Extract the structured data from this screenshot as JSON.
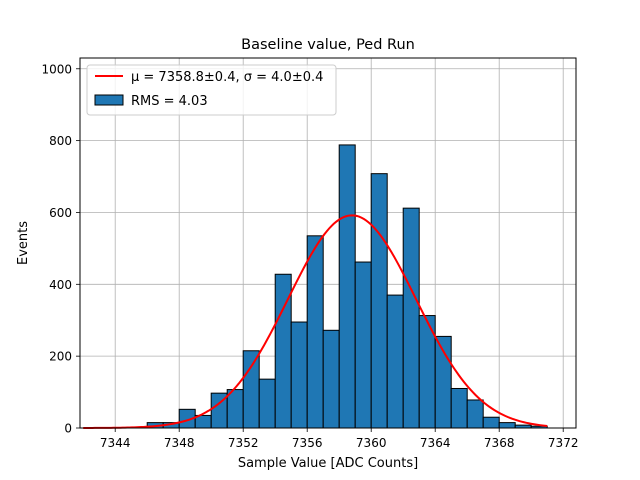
{
  "chart_data": {
    "type": "bar",
    "title": "Baseline value, Ped Run",
    "xlabel": "Sample Value [ADC Counts]",
    "ylabel": "Events",
    "xlim": [
      7341.8,
      7372.8
    ],
    "ylim": [
      0,
      1030
    ],
    "grid": true,
    "xticks": [
      7344,
      7348,
      7352,
      7356,
      7360,
      7364,
      7368,
      7372
    ],
    "yticks": [
      0,
      200,
      400,
      600,
      800,
      1000
    ],
    "bin_width": 1,
    "bins": [
      {
        "left": 7346,
        "value": 15
      },
      {
        "left": 7347,
        "value": 15
      },
      {
        "left": 7348,
        "value": 52
      },
      {
        "left": 7349,
        "value": 35
      },
      {
        "left": 7350,
        "value": 97
      },
      {
        "left": 7351,
        "value": 107
      },
      {
        "left": 7352,
        "value": 215
      },
      {
        "left": 7353,
        "value": 136
      },
      {
        "left": 7354,
        "value": 428
      },
      {
        "left": 7355,
        "value": 295
      },
      {
        "left": 7356,
        "value": 535
      },
      {
        "left": 7357,
        "value": 272
      },
      {
        "left": 7358,
        "value": 788
      },
      {
        "left": 7359,
        "value": 462
      },
      {
        "left": 7360,
        "value": 708
      },
      {
        "left": 7361,
        "value": 370
      },
      {
        "left": 7362,
        "value": 612
      },
      {
        "left": 7363,
        "value": 313
      },
      {
        "left": 7364,
        "value": 255
      },
      {
        "left": 7365,
        "value": 110
      },
      {
        "left": 7366,
        "value": 78
      },
      {
        "left": 7367,
        "value": 30
      },
      {
        "left": 7368,
        "value": 15
      },
      {
        "left": 7369,
        "value": 8
      },
      {
        "left": 7370,
        "value": 5
      }
    ],
    "series": [
      {
        "name": "RMS = 4.03",
        "type": "histogram",
        "color": "#1f77b4",
        "edge_color": "#000000"
      },
      {
        "name": "μ = 7358.8±0.4, σ = 4.0±0.4",
        "type": "gaussian_fit",
        "color": "#ff0000",
        "mu": 7358.8,
        "sigma": 4.0,
        "amplitude": 592,
        "x_range": [
          7342,
          7371
        ]
      }
    ],
    "legend": {
      "placement": "upper-left",
      "fit_label_prefix": "μ = 7358.8±0.4, ",
      "fit_label_suffix": "σ = 4.0±0.4",
      "hist_label": "RMS = 4.03"
    }
  }
}
